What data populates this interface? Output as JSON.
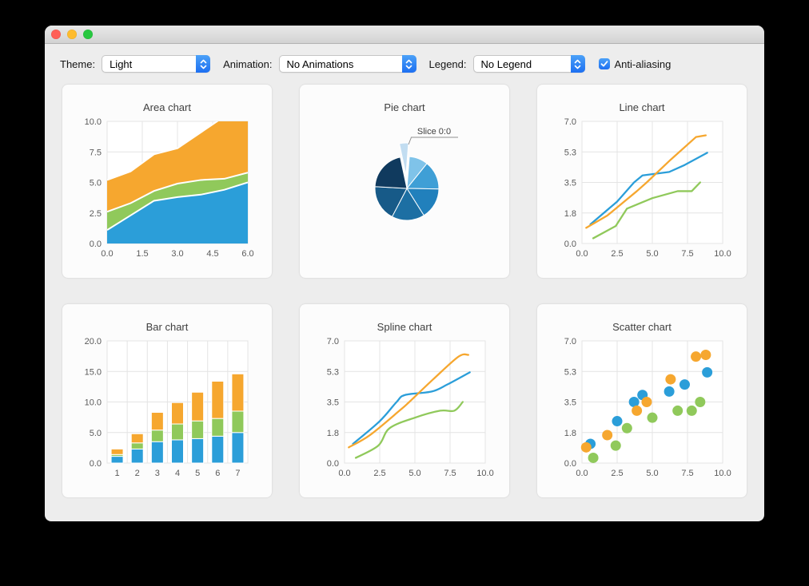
{
  "window": {
    "traffic_lights": [
      {
        "name": "close",
        "color": "#ff5f57"
      },
      {
        "name": "minimize",
        "color": "#febc2e"
      },
      {
        "name": "zoom",
        "color": "#28c840"
      }
    ]
  },
  "toolbar": {
    "accent_color": "#1d6ff1",
    "accent_color_light": "#4ba1f8",
    "theme_label": "Theme:",
    "theme_value": "Light",
    "animation_label": "Animation:",
    "animation_value": "No Animations",
    "legend_label": "Legend:",
    "legend_value": "No Legend",
    "antialiasing_label": "Anti-aliasing",
    "antialiasing_checked": true
  },
  "chart_data": [
    {
      "type": "area",
      "title": "Area chart",
      "xlim": [
        0,
        6
      ],
      "ylim": [
        0,
        10
      ],
      "x_ticks": {
        "values": [
          0,
          1.5,
          3,
          4.5,
          6
        ],
        "labels": [
          "0.0",
          "1.5",
          "3.0",
          "4.5",
          "6.0"
        ]
      },
      "y_ticks": {
        "values": [
          0,
          2.5,
          5,
          7.5,
          10
        ],
        "labels": [
          "0.0",
          "2.5",
          "5.0",
          "7.5",
          "10.0"
        ]
      },
      "x": [
        0,
        1,
        2,
        3,
        4,
        5,
        6
      ],
      "series": [
        {
          "color": "#2b9ed9",
          "tops": [
            1.1,
            2.3,
            3.5,
            3.8,
            4.0,
            4.4,
            5.0
          ]
        },
        {
          "color": "#90c95b",
          "tops": [
            2.6,
            3.3,
            4.3,
            4.9,
            5.2,
            5.3,
            5.8
          ]
        },
        {
          "color": "#f6a72f",
          "tops": [
            5.2,
            5.9,
            7.3,
            7.8,
            9.1,
            10.4,
            10.5
          ]
        }
      ],
      "grid": true,
      "legend": "none"
    },
    {
      "type": "pie",
      "title": "Pie chart",
      "start_angle": -12,
      "slices": [
        {
          "label": "Slice 0:0",
          "value": 1.1,
          "color": "#c2ddf1",
          "exploded": true,
          "label_visible": true
        },
        {
          "value": 2.3,
          "color": "#7fc3e9"
        },
        {
          "value": 3.5,
          "color": "#3f9fd6"
        },
        {
          "value": 3.8,
          "color": "#2180bc"
        },
        {
          "value": 4.0,
          "color": "#1d6fa3"
        },
        {
          "value": 4.4,
          "color": "#175a88"
        },
        {
          "value": 5.0,
          "color": "#103a5e"
        }
      ],
      "legend": "none"
    },
    {
      "type": "line",
      "title": "Line chart",
      "xlim": [
        0,
        10
      ],
      "ylim": [
        0,
        7
      ],
      "x_ticks": {
        "values": [
          0,
          2.5,
          5,
          7.5,
          10
        ],
        "labels": [
          "0.0",
          "2.5",
          "5.0",
          "7.5",
          "10.0"
        ]
      },
      "y_ticks": {
        "values": [
          0,
          1.75,
          3.5,
          5.25,
          7
        ],
        "labels": [
          "0.0",
          "1.8",
          "3.5",
          "5.3",
          "7.0"
        ]
      },
      "series": [
        {
          "color": "#2b9ed9",
          "points": [
            [
              0.6,
              1.1
            ],
            [
              2.5,
              2.4
            ],
            [
              3.7,
              3.5
            ],
            [
              4.3,
              3.9
            ],
            [
              6.2,
              4.1
            ],
            [
              7.3,
              4.5
            ],
            [
              8.9,
              5.2
            ]
          ]
        },
        {
          "color": "#90c95b",
          "points": [
            [
              0.8,
              0.3
            ],
            [
              2.4,
              1.0
            ],
            [
              3.2,
              2.0
            ],
            [
              5.0,
              2.6
            ],
            [
              6.8,
              3.0
            ],
            [
              7.8,
              3.0
            ],
            [
              8.4,
              3.5
            ]
          ]
        },
        {
          "color": "#f6a72f",
          "points": [
            [
              0.3,
              0.9
            ],
            [
              1.8,
              1.6
            ],
            [
              3.9,
              3.0
            ],
            [
              4.6,
              3.5
            ],
            [
              6.3,
              4.8
            ],
            [
              8.1,
              6.1
            ],
            [
              8.8,
              6.2
            ]
          ]
        }
      ],
      "grid": true,
      "legend": "none"
    },
    {
      "type": "bar",
      "title": "Bar chart",
      "categories": [
        "1",
        "2",
        "3",
        "4",
        "5",
        "6",
        "7"
      ],
      "ylim": [
        0,
        20
      ],
      "y_ticks": {
        "values": [
          0,
          5,
          10,
          15,
          20
        ],
        "labels": [
          "0.0",
          "5.0",
          "10.0",
          "15.0",
          "20.0"
        ]
      },
      "series": [
        {
          "color": "#2b9ed9",
          "values": [
            1.1,
            2.3,
            3.5,
            3.8,
            4.0,
            4.4,
            5.0
          ]
        },
        {
          "color": "#90c95b",
          "values": [
            0.3,
            1.0,
            1.9,
            2.6,
            2.9,
            2.9,
            3.5
          ]
        },
        {
          "color": "#f6a72f",
          "values": [
            0.9,
            1.5,
            2.9,
            3.5,
            4.7,
            6.1,
            6.1
          ]
        }
      ],
      "stacked": true,
      "grid": true,
      "legend": "none"
    },
    {
      "type": "spline",
      "title": "Spline chart",
      "xlim": [
        0,
        10
      ],
      "ylim": [
        0,
        7
      ],
      "x_ticks": {
        "values": [
          0,
          2.5,
          5,
          7.5,
          10
        ],
        "labels": [
          "0.0",
          "2.5",
          "5.0",
          "7.5",
          "10.0"
        ]
      },
      "y_ticks": {
        "values": [
          0,
          1.75,
          3.5,
          5.25,
          7
        ],
        "labels": [
          "0.0",
          "1.8",
          "3.5",
          "5.3",
          "7.0"
        ]
      },
      "series": [
        {
          "color": "#2b9ed9",
          "points": [
            [
              0.6,
              1.1
            ],
            [
              2.5,
              2.4
            ],
            [
              3.7,
              3.5
            ],
            [
              4.3,
              3.9
            ],
            [
              6.2,
              4.1
            ],
            [
              7.3,
              4.5
            ],
            [
              8.9,
              5.2
            ]
          ]
        },
        {
          "color": "#90c95b",
          "points": [
            [
              0.8,
              0.3
            ],
            [
              2.4,
              1.0
            ],
            [
              3.2,
              2.0
            ],
            [
              5.0,
              2.6
            ],
            [
              6.8,
              3.0
            ],
            [
              7.8,
              3.0
            ],
            [
              8.4,
              3.5
            ]
          ]
        },
        {
          "color": "#f6a72f",
          "points": [
            [
              0.3,
              0.9
            ],
            [
              1.8,
              1.6
            ],
            [
              3.9,
              3.0
            ],
            [
              4.6,
              3.5
            ],
            [
              6.3,
              4.8
            ],
            [
              8.1,
              6.1
            ],
            [
              8.8,
              6.2
            ]
          ]
        }
      ],
      "grid": true,
      "legend": "none"
    },
    {
      "type": "scatter",
      "title": "Scatter chart",
      "xlim": [
        0,
        10
      ],
      "ylim": [
        0,
        7
      ],
      "x_ticks": {
        "values": [
          0,
          2.5,
          5,
          7.5,
          10
        ],
        "labels": [
          "0.0",
          "2.5",
          "5.0",
          "7.5",
          "10.0"
        ]
      },
      "y_ticks": {
        "values": [
          0,
          1.75,
          3.5,
          5.25,
          7
        ],
        "labels": [
          "0.0",
          "1.8",
          "3.5",
          "5.3",
          "7.0"
        ]
      },
      "series": [
        {
          "color": "#2b9ed9",
          "points": [
            [
              0.6,
              1.1
            ],
            [
              2.5,
              2.4
            ],
            [
              3.7,
              3.5
            ],
            [
              4.3,
              3.9
            ],
            [
              6.2,
              4.1
            ],
            [
              7.3,
              4.5
            ],
            [
              8.9,
              5.2
            ]
          ]
        },
        {
          "color": "#90c95b",
          "points": [
            [
              0.8,
              0.3
            ],
            [
              2.4,
              1.0
            ],
            [
              3.2,
              2.0
            ],
            [
              5.0,
              2.6
            ],
            [
              6.8,
              3.0
            ],
            [
              7.8,
              3.0
            ],
            [
              8.4,
              3.5
            ]
          ]
        },
        {
          "color": "#f6a72f",
          "points": [
            [
              0.3,
              0.9
            ],
            [
              1.8,
              1.6
            ],
            [
              3.9,
              3.0
            ],
            [
              4.6,
              3.5
            ],
            [
              6.3,
              4.8
            ],
            [
              8.1,
              6.1
            ],
            [
              8.8,
              6.2
            ]
          ]
        }
      ],
      "grid": true,
      "legend": "none"
    }
  ]
}
